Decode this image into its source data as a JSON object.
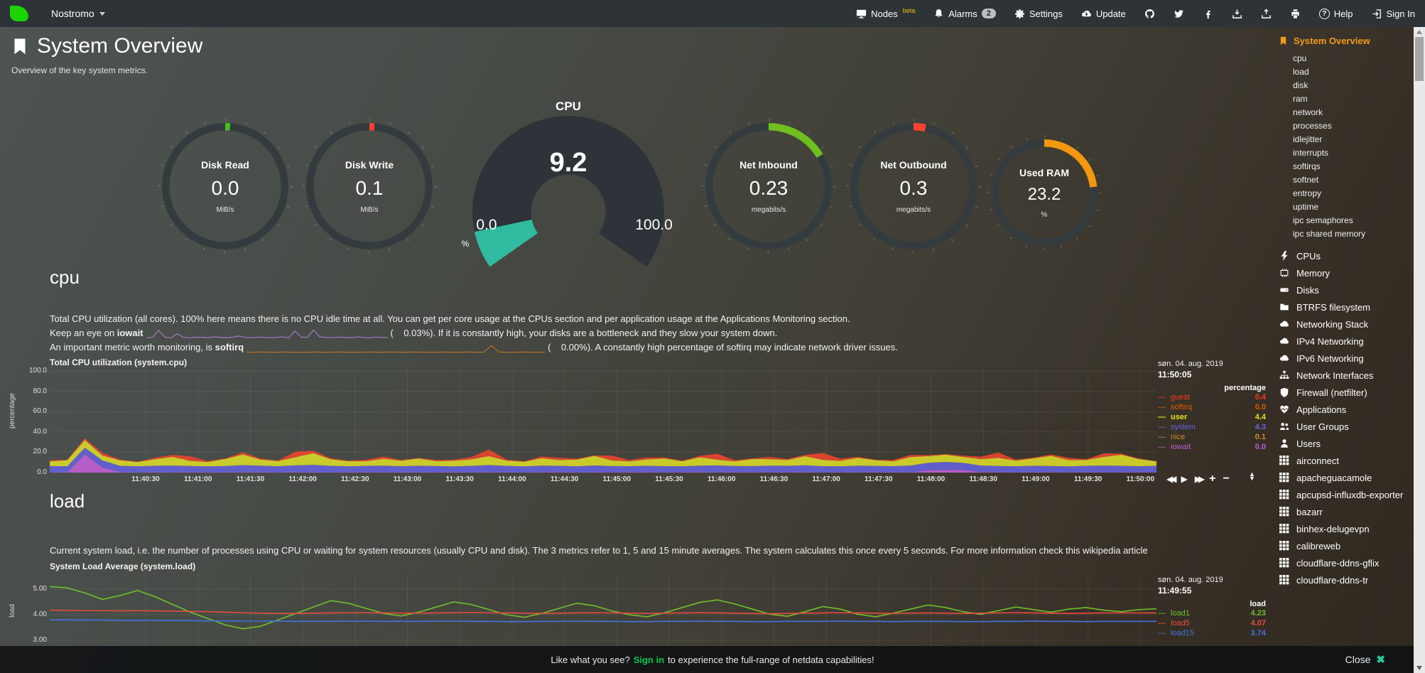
{
  "navbar": {
    "hostname": "Nostromo",
    "items": [
      {
        "id": "nodes",
        "label": "Nodes",
        "badge": "beta"
      },
      {
        "id": "alarms",
        "label": "Alarms",
        "count": "2"
      },
      {
        "id": "settings",
        "label": "Settings"
      },
      {
        "id": "update",
        "label": "Update"
      }
    ],
    "icon_buttons": [
      "github",
      "twitter",
      "facebook",
      "download",
      "upload",
      "print"
    ],
    "help": "Help",
    "signin": "Sign In"
  },
  "header": {
    "title": "System Overview",
    "subtitle": "Overview of the key system metrics."
  },
  "gauges": {
    "rings": [
      {
        "id": "disk-read",
        "title": "Disk Read",
        "value": "0.0",
        "unit": "MiB/s",
        "pct": 1.3,
        "color": "#44c01e"
      },
      {
        "id": "disk-write",
        "title": "Disk Write",
        "value": "0.1",
        "unit": "MiB/s",
        "pct": 1.3,
        "color": "#ff4132"
      },
      {
        "id": "net-in",
        "title": "Net Inbound",
        "value": "0.23",
        "unit": "megabits/s",
        "pct": 16.5,
        "color": "#6fbf1e"
      },
      {
        "id": "net-out",
        "title": "Net Outbound",
        "value": "0.3",
        "unit": "megabits/s",
        "pct": 3.2,
        "color": "#ff4132"
      },
      {
        "id": "used-ram",
        "title": "Used RAM",
        "value": "23.2",
        "unit": "%",
        "pct": 23.2,
        "color": "#f3980f"
      }
    ],
    "cpu": {
      "title": "CPU",
      "value": "9.2",
      "min": "0.0",
      "max": "100.0",
      "unit": "%",
      "pct": 9.2,
      "fill_color": "#30baa0",
      "track_color": "#2d3339"
    }
  },
  "cpu_section": {
    "heading": "cpu",
    "line1": "Total CPU utilization (all cores). 100% here means there is no CPU idle time at all. You can get per core usage at the CPUs section and per application usage at the Applications Monitoring section.",
    "line2_pre": "Keep an eye on ",
    "line2_bold": "iowait",
    "line2_post": "(    0.03%). If it is constantly high, your disks are a bottleneck and they slow your system down.",
    "line3_pre": "An important metric worth monitoring, is ",
    "line3_bold": "softirq",
    "line3_post": "(    0.00%). A constantly high percentage of softirq may indicate network driver issues."
  },
  "load_section": {
    "heading": "load",
    "desc": "Current system load, i.e. the number of processes using CPU or waiting for system resources (usually CPU and disk). The 3 metrics refer to 1, 5 and 15 minute averages. The system calculates this once every 5 seconds. For more information check this wikipedia article"
  },
  "footer": {
    "message_pre": "Like what you see?",
    "signin": "Sign in",
    "message_post": "to experience the full-range of netdata capabilities!",
    "close": "Close"
  },
  "sidebar": {
    "active": "System Overview",
    "sub_items": [
      "cpu",
      "load",
      "disk",
      "ram",
      "network",
      "processes",
      "idlejitter",
      "interrupts",
      "softirqs",
      "softnet",
      "entropy",
      "uptime",
      "ipc semaphores",
      "ipc shared memory"
    ],
    "sections": [
      {
        "icon": "bolt",
        "label": "CPUs"
      },
      {
        "icon": "memory",
        "label": "Memory"
      },
      {
        "icon": "disk",
        "label": "Disks"
      },
      {
        "icon": "folder",
        "label": "BTRFS filesystem"
      },
      {
        "icon": "cloud",
        "label": "Networking Stack"
      },
      {
        "icon": "cloud",
        "label": "IPv4 Networking"
      },
      {
        "icon": "cloud",
        "label": "IPv6 Networking"
      },
      {
        "icon": "sitemap",
        "label": "Network Interfaces"
      },
      {
        "icon": "shield",
        "label": "Firewall (netfilter)"
      },
      {
        "icon": "heartbeat",
        "label": "Applications"
      },
      {
        "icon": "users",
        "label": "User Groups"
      },
      {
        "icon": "user",
        "label": "Users"
      },
      {
        "icon": "grid",
        "label": "airconnect"
      },
      {
        "icon": "grid",
        "label": "apacheguacamole"
      },
      {
        "icon": "grid",
        "label": "apcupsd-influxdb-exporter"
      },
      {
        "icon": "grid",
        "label": "bazarr"
      },
      {
        "icon": "grid",
        "label": "binhex-delugevpn"
      },
      {
        "icon": "grid",
        "label": "calibreweb"
      },
      {
        "icon": "grid",
        "label": "cloudflare-ddns-gflix"
      },
      {
        "icon": "grid",
        "label": "cloudflare-ddns-tr"
      }
    ]
  },
  "chart_data": [
    {
      "type": "area",
      "stacked": true,
      "id": "cpu",
      "title": "Total CPU utilization (system.cpu)",
      "ylabel": "percentage",
      "ylim": [
        0,
        100
      ],
      "yticks": [
        "100.0",
        "80.0",
        "60.0",
        "40.0",
        "20.0",
        "0.0"
      ],
      "x_ticks": [
        "11:40:30",
        "11:41:00",
        "11:41:30",
        "11:42:00",
        "11:42:30",
        "11:43:00",
        "11:43:30",
        "11:44:00",
        "11:44:30",
        "11:45:00",
        "11:45:30",
        "11:46:00",
        "11:46:30",
        "11:47:00",
        "11:47:30",
        "11:48:00",
        "11:48:30",
        "11:49:00",
        "11:49:30",
        "11:50:00"
      ],
      "date": "søn. 04. aug. 2019",
      "time": "11:50:05",
      "legend_header": "percentage",
      "legend": [
        {
          "name": "guest",
          "value": "0.4",
          "color": "#ff3820"
        },
        {
          "name": "softirq",
          "value": "0.0",
          "color": "#e05a00"
        },
        {
          "name": "user",
          "value": "4.4",
          "color": "#e3e314",
          "bold": true
        },
        {
          "name": "system",
          "value": "4.3",
          "color": "#6a64e0"
        },
        {
          "name": "nice",
          "value": "0.1",
          "color": "#cc8b29"
        },
        {
          "name": "iowait",
          "value": "0.0",
          "color": "#bf5fd0"
        }
      ],
      "series": [
        {
          "name": "iowait",
          "color": "#bf5fd0",
          "values": [
            0.3,
            0.4,
            18,
            5,
            0.5,
            0.3,
            0.4,
            0.3,
            0.5,
            0.4,
            0.3,
            0.5,
            0.4,
            0.3,
            0.5,
            0.4,
            0.3,
            0.4,
            0.5,
            0.3,
            0.4,
            0.3,
            0.5,
            0.4,
            0.3,
            0.5,
            0.4,
            0.3,
            0.4,
            0.5,
            0.3,
            0.4,
            0.3,
            0.5,
            0.4,
            0.3,
            0.5,
            0.4,
            0.3,
            0.4,
            0.5,
            0.3,
            0.4,
            0.5,
            0.3,
            0.4,
            0.3,
            0.5,
            0.4,
            0.3,
            2.2,
            2.6,
            2.4,
            0.5,
            0.4,
            0.3,
            0.4,
            0.5,
            0.3,
            0.4,
            0.3,
            0.5,
            0.4,
            0.3
          ]
        },
        {
          "name": "system",
          "color": "#6361d8",
          "values": [
            6.2,
            5.8,
            6.5,
            7.0,
            6.1,
            5.9,
            6.3,
            6.6,
            6.0,
            5.7,
            6.2,
            6.8,
            6.4,
            5.9,
            6.7,
            7.2,
            6.3,
            5.8,
            6.1,
            6.5,
            5.9,
            6.4,
            6.0,
            5.7,
            6.3,
            6.9,
            6.2,
            5.8,
            6.4,
            6.1,
            5.9,
            6.6,
            6.2,
            5.8,
            6.3,
            6.0,
            5.7,
            6.4,
            6.8,
            6.1,
            5.9,
            6.5,
            6.2,
            6.7,
            6.0,
            5.8,
            6.4,
            6.1,
            5.9,
            6.6,
            7.4,
            7.9,
            7.2,
            6.4,
            6.1,
            5.9,
            6.3,
            6.0,
            5.8,
            6.2,
            6.6,
            6.1,
            5.9,
            6.3
          ]
        },
        {
          "name": "user",
          "color": "#d6d62a",
          "values": [
            4.5,
            6.0,
            7.5,
            4.8,
            5.5,
            4.2,
            6.5,
            8.5,
            5.0,
            4.4,
            7.0,
            10.5,
            6.0,
            5.2,
            8.0,
            11.5,
            6.5,
            5.0,
            4.6,
            6.8,
            5.4,
            7.2,
            4.8,
            5.6,
            6.4,
            8.8,
            5.2,
            4.6,
            7.4,
            5.8,
            6.6,
            9.5,
            5.4,
            4.8,
            6.2,
            7.6,
            5.0,
            8.2,
            5.6,
            4.6,
            7.0,
            6.4,
            5.8,
            9.0,
            6.2,
            5.4,
            7.8,
            5.6,
            4.8,
            8.4,
            6.6,
            7.2,
            5.8,
            6.4,
            8.0,
            5.6,
            7.4,
            10.0,
            6.2,
            5.8,
            8.6,
            11.0,
            7.0,
            4.4
          ]
        },
        {
          "name": "guest",
          "color": "#e8442e",
          "values": [
            1.2,
            0.5,
            1.8,
            2.5,
            0.8,
            0.4,
            1.5,
            2.0,
            4.5,
            0.9,
            0.5,
            2.2,
            1.0,
            0.6,
            5.5,
            2.4,
            1.1,
            0.5,
            1.4,
            2.1,
            0.8,
            0.4,
            1.2,
            1.0,
            2.3,
            6.5,
            1.1,
            0.5,
            1.6,
            2.2,
            0.9,
            0.4,
            4.8,
            1.2,
            2.0,
            1.0,
            0.5,
            1.4,
            5.8,
            1.1,
            0.6,
            2.2,
            1.0,
            1.3,
            6.8,
            2.1,
            1.0,
            0.5,
            1.3,
            2.0,
            0.9,
            0.5,
            1.2,
            2.4,
            5.2,
            1.0,
            0.6,
            1.3,
            2.1,
            0.8,
            3.4,
            1.1,
            0.5,
            0.4
          ]
        }
      ]
    },
    {
      "type": "line",
      "id": "load",
      "title": "System Load Average (system.load)",
      "ylabel": "load",
      "ylim": [
        2.8,
        5.6
      ],
      "yticks": [
        "5.00",
        "4.00",
        "3.00"
      ],
      "date": "søn. 04. aug. 2019",
      "time": "11:49:55",
      "legend_header": "load",
      "legend": [
        {
          "name": "load1",
          "value": "4.23",
          "color": "#6fbf2a"
        },
        {
          "name": "load5",
          "value": "4.07",
          "color": "#e84c3d"
        },
        {
          "name": "load15",
          "value": "3.74",
          "color": "#4472de"
        }
      ],
      "series": [
        {
          "name": "load1",
          "color": "#6fbf2a",
          "values": [
            5.1,
            5.05,
            4.85,
            4.6,
            4.75,
            4.95,
            4.7,
            4.4,
            4.1,
            3.85,
            3.6,
            3.45,
            3.55,
            3.8,
            4.05,
            4.3,
            4.55,
            4.45,
            4.25,
            4.05,
            3.95,
            4.1,
            4.3,
            4.5,
            4.4,
            4.2,
            4.0,
            3.9,
            4.05,
            4.25,
            4.45,
            4.35,
            4.15,
            4.0,
            3.92,
            4.08,
            4.28,
            4.48,
            4.58,
            4.42,
            4.22,
            4.02,
            3.94,
            4.12,
            4.32,
            4.22,
            4.02,
            3.92,
            4.06,
            4.22,
            4.38,
            4.28,
            4.12,
            4.02,
            4.16,
            4.3,
            4.2,
            4.1,
            4.22,
            4.28,
            4.18,
            4.12,
            4.2,
            4.23
          ]
        },
        {
          "name": "load5",
          "color": "#e84c3d",
          "values": [
            4.18,
            4.17,
            4.16,
            4.16,
            4.15,
            4.16,
            4.15,
            4.14,
            4.13,
            4.12,
            4.1,
            4.08,
            4.06,
            4.05,
            4.05,
            4.06,
            4.07,
            4.08,
            4.08,
            4.07,
            4.06,
            4.06,
            4.07,
            4.08,
            4.09,
            4.08,
            4.07,
            4.06,
            4.05,
            4.06,
            4.07,
            4.08,
            4.07,
            4.06,
            4.05,
            4.06,
            4.07,
            4.08,
            4.07,
            4.06,
            4.05,
            4.04,
            4.05,
            4.06,
            4.07,
            4.08,
            4.07,
            4.06,
            4.05,
            4.06,
            4.07,
            4.06,
            4.05,
            4.06,
            4.07,
            4.08,
            4.07,
            4.06,
            4.05,
            4.06,
            4.07,
            4.07,
            4.07,
            4.07
          ]
        },
        {
          "name": "load15",
          "color": "#4472de",
          "values": [
            3.8,
            3.8,
            3.79,
            3.79,
            3.78,
            3.78,
            3.78,
            3.77,
            3.77,
            3.76,
            3.76,
            3.75,
            3.75,
            3.75,
            3.74,
            3.74,
            3.74,
            3.75,
            3.75,
            3.74,
            3.74,
            3.74,
            3.75,
            3.75,
            3.74,
            3.74,
            3.73,
            3.73,
            3.74,
            3.74,
            3.75,
            3.74,
            3.74,
            3.73,
            3.73,
            3.74,
            3.74,
            3.75,
            3.74,
            3.74,
            3.73,
            3.73,
            3.74,
            3.74,
            3.74,
            3.75,
            3.74,
            3.74,
            3.73,
            3.74,
            3.74,
            3.74,
            3.73,
            3.73,
            3.74,
            3.74,
            3.75,
            3.74,
            3.74,
            3.73,
            3.74,
            3.74,
            3.74,
            3.74
          ]
        }
      ]
    },
    {
      "type": "line",
      "id": "spark-iowait",
      "color": "#b87fd4",
      "values": [
        0.2,
        0.3,
        2.8,
        0.4,
        0.2,
        1.6,
        0.3,
        0.2,
        0.4,
        0.3,
        0.2,
        0.5,
        0.3,
        0.2,
        0.4,
        0.8,
        0.3,
        0.2,
        0.4,
        0.3,
        0.2,
        0.3,
        0.5,
        0.2,
        2.6,
        0.4,
        0.3,
        2.9,
        0.5,
        0.3,
        0.2,
        0.4,
        0.3,
        0.2,
        0.5,
        0.3,
        0.2,
        0.4,
        0.3,
        0.2
      ]
    },
    {
      "type": "line",
      "id": "spark-softirq",
      "color": "#c87a1e",
      "values": [
        0.1,
        0.1,
        0.2,
        0.1,
        0.1,
        0.2,
        0.1,
        0.1,
        0.1,
        0.2,
        0.1,
        0.1,
        0.2,
        0.1,
        0.1,
        0.1,
        0.2,
        0.1,
        0.1,
        0.2,
        0.1,
        0.1,
        0.2,
        0.1,
        0.1,
        0.1,
        0.2,
        0.1,
        0.1,
        0.2,
        0.1,
        0.1,
        2.4,
        0.2,
        0.1,
        0.1,
        0.2,
        0.1,
        0.1,
        0.1
      ]
    }
  ]
}
